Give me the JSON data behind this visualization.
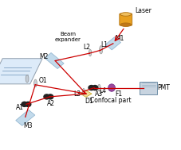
{
  "bg_color": "#ffffff",
  "laser_label": "Laser",
  "beam_expander_label": "Beam\nexpander",
  "M1_label": "M1",
  "M2_label": "M2",
  "L1_label": "L1",
  "L2_label": "L2",
  "L3_label": "L3",
  "L4_label": "L4",
  "A1_label": "A1",
  "A2_label": "A2",
  "A3_label": "A3",
  "D1_label": "D1",
  "O1_label": "O1",
  "M3_label": "M3",
  "F1_label": "F1",
  "PMT_label": "PMT",
  "confocal_label": "Confocal part",
  "beam_color": "#cc0000",
  "laser_color": "#e8a020",
  "mirror_color": "#b8d4e8",
  "lens_color": "#c8c8c8",
  "filter_color": "#903090",
  "pmt_color": "#c8d4e0",
  "dichroic_color": "#f0d890",
  "chip_color": "#d8e8f8"
}
